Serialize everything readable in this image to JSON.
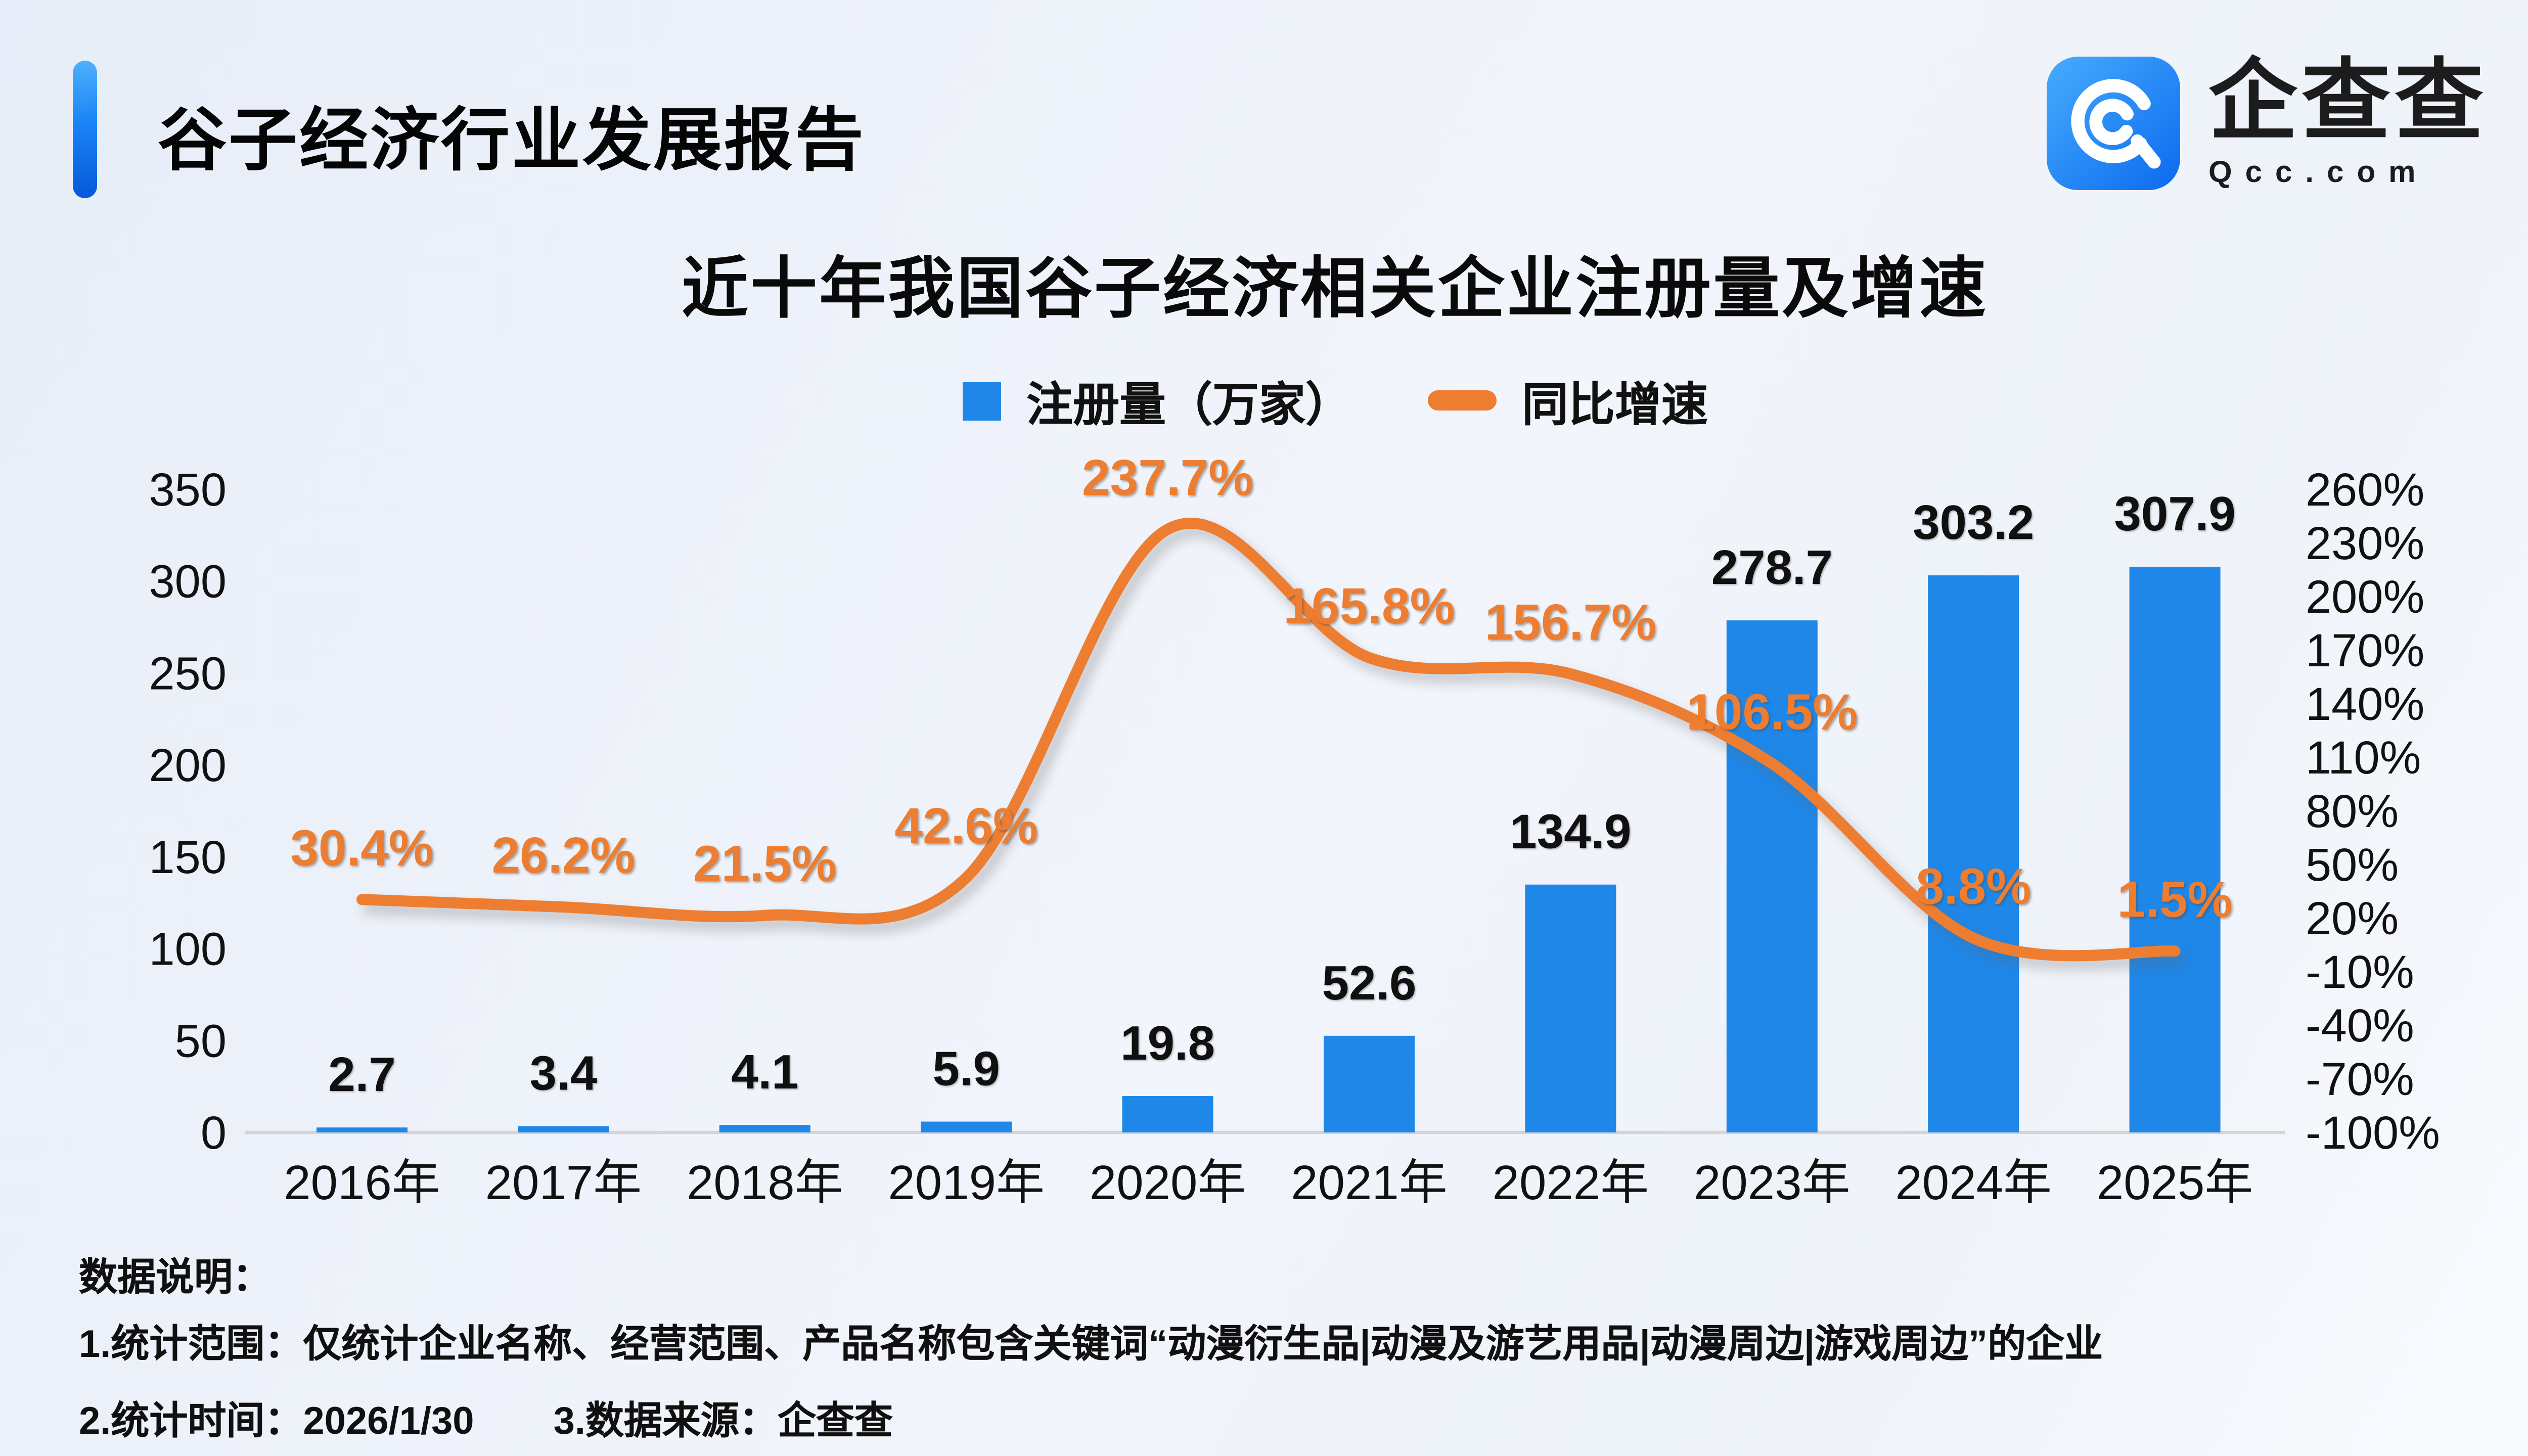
{
  "header": {
    "title": "谷子经济行业发展报告"
  },
  "logo": {
    "brand": "企查查",
    "domain": "Qcc.com"
  },
  "chart_data": {
    "type": "combo-bar-line",
    "title": "近十年我国谷子经济相关企业注册量及增速",
    "categories": [
      "2016年",
      "2017年",
      "2018年",
      "2019年",
      "2020年",
      "2021年",
      "2022年",
      "2023年",
      "2024年",
      "2025年"
    ],
    "series": [
      {
        "name": "注册量（万家）",
        "type": "bar",
        "axis": "left",
        "color": "#1E87E8",
        "values": [
          2.7,
          3.4,
          4.1,
          5.9,
          19.8,
          52.6,
          134.9,
          278.7,
          303.2,
          307.9
        ],
        "value_labels": [
          "2.7",
          "3.4",
          "4.1",
          "5.9",
          "19.8",
          "52.6",
          "134.9",
          "278.7",
          "303.2",
          "307.9"
        ]
      },
      {
        "name": "同比增速",
        "type": "line",
        "axis": "right",
        "color": "#ED7D31",
        "values": [
          30.4,
          26.2,
          21.5,
          42.6,
          237.7,
          165.8,
          156.7,
          106.5,
          8.8,
          1.5
        ],
        "value_labels": [
          "30.4%",
          "26.2%",
          "21.5%",
          "42.6%",
          "237.7%",
          "165.8%",
          "156.7%",
          "106.5%",
          "8.8%",
          "1.5%"
        ]
      }
    ],
    "left_axis": {
      "min": 0,
      "max": 350,
      "step": 50,
      "ticks": [
        "350",
        "300",
        "250",
        "200",
        "150",
        "100",
        "50",
        "0"
      ]
    },
    "right_axis": {
      "min": -100,
      "max": 260,
      "step": 30,
      "ticks": [
        "260%",
        "230%",
        "200%",
        "170%",
        "140%",
        "110%",
        "80%",
        "50%",
        "20%",
        "-10%",
        "-40%",
        "-70%",
        "-100%"
      ]
    },
    "legend_position": "top",
    "grid": false
  },
  "footnotes": {
    "heading": "数据说明：",
    "line1": "1.统计范围：仅统计企业名称、经营范围、产品名称包含关键词“动漫衍生品|动漫及游艺用品|动漫周边|游戏周边”的企业",
    "line2a": "2.统计时间：2026/1/30",
    "line2b": "3.数据来源：企查查"
  }
}
